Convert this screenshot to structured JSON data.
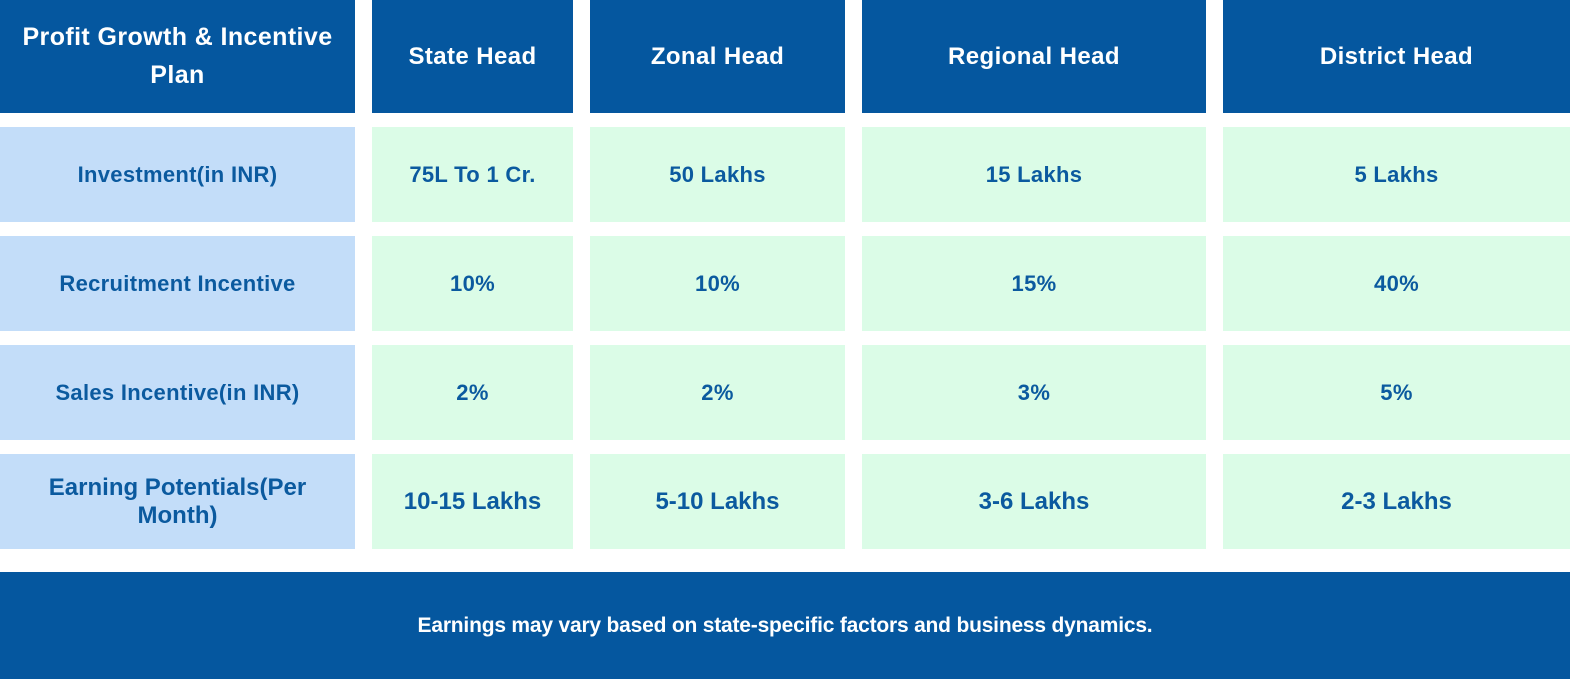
{
  "chart_data": {
    "type": "table",
    "title": "Profit Growth & Incentive Plan",
    "columns": [
      "Profit Growth & Incentive Plan",
      "State Head",
      "Zonal Head",
      "Regional Head",
      "District Head"
    ],
    "rows": [
      {
        "label": "Investment(in INR)",
        "values": [
          "75L To 1 Cr.",
          "50 Lakhs",
          "15 Lakhs",
          "5 Lakhs"
        ]
      },
      {
        "label": "Recruitment Incentive",
        "values": [
          "10%",
          "10%",
          "15%",
          "40%"
        ]
      },
      {
        "label": "Sales Incentive(in INR)",
        "values": [
          "2%",
          "2%",
          "3%",
          "5%"
        ]
      },
      {
        "label": "Earning Potentials(Per Month)",
        "values": [
          "10-15 Lakhs",
          "5-10 Lakhs",
          "3-6 Lakhs",
          "2-3 Lakhs"
        ]
      }
    ],
    "footnote": "Earnings may vary based on state-specific factors and business dynamics."
  },
  "table": {
    "corner_label": "Profit Growth & Incentive Plan",
    "column_headers": [
      "State Head",
      "Zonal Head",
      "Regional Head",
      "District Head"
    ],
    "rows": [
      {
        "label": "Investment(in INR)",
        "values": [
          "75L To 1 Cr.",
          "50 Lakhs",
          "15 Lakhs",
          "5 Lakhs"
        ]
      },
      {
        "label": "Recruitment Incentive",
        "values": [
          "10%",
          "10%",
          "15%",
          "40%"
        ]
      },
      {
        "label": "Sales Incentive(in INR)",
        "values": [
          "2%",
          "2%",
          "3%",
          "5%"
        ]
      },
      {
        "label": "Earning Potentials(Per Month)",
        "values": [
          "10-15 Lakhs",
          "5-10 Lakhs",
          "3-6 Lakhs",
          "2-3 Lakhs"
        ]
      }
    ]
  },
  "footer": {
    "note": "Earnings may vary based on state-specific factors and business dynamics."
  },
  "colors": {
    "header_bar_blue": "#05579F",
    "row_label_blue": "#C3DDF9",
    "value_cell_green": "#DBFCE7",
    "cell_text_blue": "#0B5A9F",
    "header_text": "#FFFFFF"
  }
}
